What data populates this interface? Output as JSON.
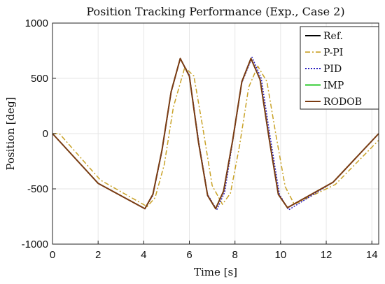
{
  "chart_data": {
    "type": "line",
    "title": "Position Tracking Performance (Exp., Case 2)",
    "xlabel": "Time [s]",
    "ylabel": "Position [deg]",
    "xlim": [
      0,
      14.3
    ],
    "ylim": [
      -1000,
      1000
    ],
    "xticks": [
      0,
      2,
      4,
      6,
      8,
      10,
      12,
      14
    ],
    "yticks": [
      -1000,
      -500,
      0,
      500,
      1000
    ],
    "grid": true,
    "legend_position": "top-right",
    "series": [
      {
        "name": "Ref.",
        "color": "#000000",
        "dash": "solid",
        "x": [
          0,
          2.0,
          4.05,
          4.4,
          4.8,
          5.2,
          5.6,
          6.0,
          6.4,
          6.8,
          7.15,
          7.5,
          7.9,
          8.3,
          8.7,
          9.1,
          9.5,
          9.9,
          10.3,
          12.3,
          14.3
        ],
        "y": [
          0,
          -450,
          -680,
          -550,
          -150,
          380,
          680,
          520,
          -80,
          -560,
          -680,
          -520,
          -60,
          470,
          680,
          490,
          -50,
          -550,
          -670,
          -440,
          0
        ]
      },
      {
        "name": "P-PI",
        "color": "#c9a227",
        "dash": "dashdot",
        "x": [
          0,
          0.3,
          2.1,
          4.15,
          4.5,
          4.9,
          5.3,
          5.8,
          6.2,
          6.6,
          7.0,
          7.45,
          7.8,
          8.2,
          8.6,
          9.0,
          9.4,
          9.8,
          10.2,
          10.6,
          12.4,
          14.3
        ],
        "y": [
          0,
          0,
          -420,
          -660,
          -580,
          -280,
          240,
          600,
          520,
          40,
          -470,
          -640,
          -540,
          -110,
          420,
          610,
          470,
          -20,
          -480,
          -640,
          -460,
          -60
        ]
      },
      {
        "name": "PID",
        "color": "#2a1fbf",
        "dash": "dotted",
        "x": [
          0,
          2.0,
          4.05,
          4.4,
          4.8,
          5.2,
          5.6,
          6.0,
          6.4,
          6.8,
          7.2,
          7.55,
          7.9,
          8.3,
          8.75,
          9.15,
          9.55,
          9.95,
          10.35,
          12.3,
          14.3
        ],
        "y": [
          0,
          -450,
          -680,
          -560,
          -160,
          370,
          680,
          530,
          -60,
          -550,
          -690,
          -530,
          -70,
          460,
          690,
          500,
          -40,
          -550,
          -690,
          -440,
          0
        ]
      },
      {
        "name": "IMP",
        "color": "#22c722",
        "dash": "solid",
        "x": [
          0,
          2.0,
          4.05,
          4.4,
          4.8,
          5.2,
          5.6,
          6.0,
          6.4,
          6.8,
          7.15,
          7.5,
          7.9,
          8.3,
          8.7,
          9.1,
          9.5,
          9.9,
          10.3,
          12.3,
          14.3
        ],
        "y": [
          0,
          -450,
          -680,
          -550,
          -150,
          380,
          680,
          520,
          -80,
          -560,
          -680,
          -520,
          -60,
          470,
          680,
          490,
          -50,
          -550,
          -670,
          -440,
          0
        ]
      },
      {
        "name": "RODOB",
        "color": "#7a3b12",
        "dash": "solid",
        "x": [
          0,
          2.0,
          4.05,
          4.4,
          4.8,
          5.2,
          5.6,
          6.0,
          6.4,
          6.8,
          7.15,
          7.5,
          7.9,
          8.3,
          8.7,
          9.1,
          9.5,
          9.9,
          10.3,
          12.3,
          14.3
        ],
        "y": [
          0,
          -450,
          -680,
          -550,
          -150,
          380,
          680,
          520,
          -80,
          -560,
          -680,
          -520,
          -60,
          470,
          680,
          490,
          -50,
          -550,
          -670,
          -440,
          0
        ]
      }
    ]
  }
}
